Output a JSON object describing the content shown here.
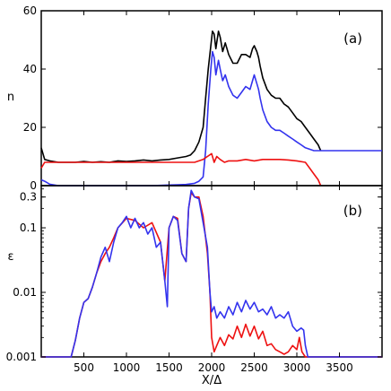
{
  "chart_data": [
    {
      "panel": "(a)",
      "type": "line",
      "ylabel": "n",
      "xlabel": "",
      "xlim": [
        0,
        4000
      ],
      "ylim": [
        0,
        60
      ],
      "scale": "linear",
      "yticks": [
        0,
        20,
        40,
        60
      ],
      "xticks": [
        500,
        1000,
        1500,
        2000,
        2500,
        3000,
        3500
      ],
      "series": [
        {
          "color": "#000000",
          "x": [
            0,
            40,
            100,
            200,
            300,
            400,
            500,
            600,
            700,
            800,
            900,
            1000,
            1100,
            1200,
            1300,
            1400,
            1500,
            1600,
            1700,
            1750,
            1800,
            1850,
            1900,
            1930,
            1960,
            1990,
            2010,
            2030,
            2050,
            2080,
            2100,
            2130,
            2160,
            2200,
            2250,
            2300,
            2350,
            2400,
            2450,
            2480,
            2500,
            2530,
            2550,
            2570,
            2600,
            2650,
            2700,
            2750,
            2800,
            2850,
            2900,
            2950,
            3000,
            3050,
            3100,
            3150,
            3200,
            3250,
            3280
          ],
          "y": [
            13,
            9,
            8.5,
            8,
            8,
            8,
            8.3,
            8,
            8.2,
            8,
            8.5,
            8.3,
            8.5,
            8.8,
            8.5,
            8.8,
            9,
            9.5,
            10,
            10.5,
            12,
            15,
            20,
            30,
            40,
            48,
            53,
            52,
            47,
            53,
            51,
            46,
            49,
            45,
            42,
            42,
            45,
            45,
            44,
            47,
            48,
            46,
            44,
            41,
            37,
            33,
            31,
            30,
            30,
            28,
            27,
            25,
            23,
            22,
            20,
            18,
            16,
            14,
            12
          ]
        },
        {
          "color": "#3333ee",
          "x": [
            0,
            40,
            100,
            200,
            300,
            400,
            500,
            600,
            700,
            800,
            900,
            1000,
            1100,
            1200,
            1300,
            1400,
            1500,
            1600,
            1700,
            1800,
            1850,
            1900,
            1930,
            1960,
            1990,
            2010,
            2030,
            2050,
            2080,
            2100,
            2130,
            2160,
            2200,
            2250,
            2300,
            2350,
            2400,
            2450,
            2480,
            2500,
            2530,
            2550,
            2570,
            2600,
            2650,
            2700,
            2750,
            2800,
            2850,
            2900,
            2950,
            3000,
            3050,
            3100,
            3150,
            3200,
            3300,
            3500,
            3700,
            4000
          ],
          "y": [
            2,
            1.5,
            0.5,
            0,
            0,
            0,
            0,
            0,
            0,
            0,
            0,
            0,
            0,
            0,
            0,
            0.1,
            0.2,
            0.3,
            0.4,
            0.8,
            1.5,
            3,
            12,
            28,
            40,
            46,
            44,
            38,
            43,
            40,
            36,
            38,
            34,
            31,
            30,
            32,
            34,
            33,
            36,
            38,
            35,
            33,
            30,
            26,
            22,
            20,
            19,
            19,
            18,
            17,
            16,
            15,
            14,
            13,
            12.5,
            12,
            12,
            12,
            12,
            12
          ]
        },
        {
          "color": "#ee1111",
          "x": [
            0,
            40,
            100,
            200,
            300,
            400,
            500,
            600,
            700,
            800,
            900,
            1000,
            1100,
            1200,
            1300,
            1400,
            1500,
            1600,
            1700,
            1800,
            1850,
            1900,
            1950,
            2000,
            2030,
            2060,
            2100,
            2150,
            2200,
            2300,
            2400,
            2500,
            2600,
            2700,
            2800,
            2900,
            3000,
            3100,
            3150,
            3200,
            3250,
            3280
          ],
          "y": [
            6,
            8,
            8,
            8,
            8,
            8,
            8,
            8,
            8,
            8,
            8,
            8,
            8,
            8,
            8,
            8,
            8,
            8,
            8,
            8,
            8.5,
            9,
            10,
            11,
            8,
            10,
            9,
            8,
            8.5,
            8.5,
            9,
            8.5,
            9,
            9,
            9,
            8.8,
            8.5,
            8,
            6,
            4,
            2,
            0
          ]
        }
      ]
    },
    {
      "panel": "(b)",
      "type": "line",
      "ylabel": "ε",
      "xlabel": "X/Δ",
      "xlim": [
        0,
        4000
      ],
      "ylim": [
        0.001,
        0.45
      ],
      "scale": "log",
      "yticks": [
        0.001,
        0.01,
        0.1,
        0.3
      ],
      "ytick_labels": [
        "0.001",
        "0.01",
        "0.1",
        "0.3"
      ],
      "xticks": [
        500,
        1000,
        1500,
        2000,
        2500,
        3000,
        3500
      ],
      "xtick_labels": [
        "500",
        "1000",
        "1500",
        "2000",
        "2500",
        "3000",
        "3500"
      ],
      "series": [
        {
          "color": "#ee1111",
          "x": [
            0,
            350,
            400,
            450,
            500,
            550,
            600,
            650,
            700,
            750,
            800,
            850,
            900,
            1000,
            1100,
            1200,
            1300,
            1400,
            1450,
            1500,
            1550,
            1600,
            1650,
            1700,
            1730,
            1760,
            1800,
            1850,
            1900,
            1950,
            1980,
            2000,
            2030,
            2060,
            2100,
            2150,
            2200,
            2250,
            2300,
            2350,
            2400,
            2450,
            2500,
            2550,
            2600,
            2650,
            2700,
            2750,
            2800,
            2850,
            2900,
            2950,
            3000,
            3030,
            3060,
            3100,
            3130,
            3150,
            4000
          ],
          "y": [
            0.001,
            0.001,
            0.0018,
            0.004,
            0.007,
            0.008,
            0.012,
            0.02,
            0.03,
            0.04,
            0.05,
            0.07,
            0.1,
            0.14,
            0.13,
            0.1,
            0.12,
            0.06,
            0.015,
            0.1,
            0.15,
            0.14,
            0.04,
            0.03,
            0.2,
            0.35,
            0.3,
            0.3,
            0.15,
            0.04,
            0.01,
            0.002,
            0.0012,
            0.0015,
            0.002,
            0.0015,
            0.0022,
            0.0019,
            0.003,
            0.002,
            0.0032,
            0.0021,
            0.003,
            0.0019,
            0.0025,
            0.0015,
            0.0016,
            0.0013,
            0.0012,
            0.0011,
            0.0012,
            0.0015,
            0.0013,
            0.002,
            0.0012,
            0.001,
            0.001,
            0.001,
            0.001
          ]
        },
        {
          "color": "#3333ee",
          "x": [
            0,
            350,
            400,
            450,
            500,
            550,
            600,
            650,
            700,
            750,
            800,
            850,
            900,
            950,
            1000,
            1050,
            1100,
            1150,
            1200,
            1250,
            1300,
            1350,
            1400,
            1450,
            1480,
            1500,
            1550,
            1600,
            1650,
            1700,
            1730,
            1760,
            1800,
            1850,
            1900,
            1950,
            1980,
            2000,
            2030,
            2060,
            2100,
            2150,
            2200,
            2250,
            2300,
            2350,
            2400,
            2450,
            2500,
            2550,
            2600,
            2650,
            2700,
            2750,
            2800,
            2850,
            2900,
            2950,
            3000,
            3050,
            3080,
            3100,
            3130,
            3150,
            4000
          ],
          "y": [
            0.001,
            0.001,
            0.0018,
            0.004,
            0.007,
            0.008,
            0.012,
            0.02,
            0.035,
            0.05,
            0.03,
            0.06,
            0.1,
            0.12,
            0.15,
            0.1,
            0.14,
            0.1,
            0.12,
            0.08,
            0.1,
            0.05,
            0.06,
            0.015,
            0.006,
            0.1,
            0.15,
            0.13,
            0.04,
            0.03,
            0.2,
            0.38,
            0.3,
            0.28,
            0.12,
            0.05,
            0.01,
            0.005,
            0.006,
            0.004,
            0.005,
            0.004,
            0.006,
            0.0045,
            0.007,
            0.005,
            0.0075,
            0.0055,
            0.007,
            0.005,
            0.0055,
            0.0045,
            0.006,
            0.004,
            0.0045,
            0.004,
            0.005,
            0.003,
            0.0025,
            0.0028,
            0.0026,
            0.0015,
            0.001,
            0.001,
            0.001
          ]
        }
      ]
    }
  ]
}
